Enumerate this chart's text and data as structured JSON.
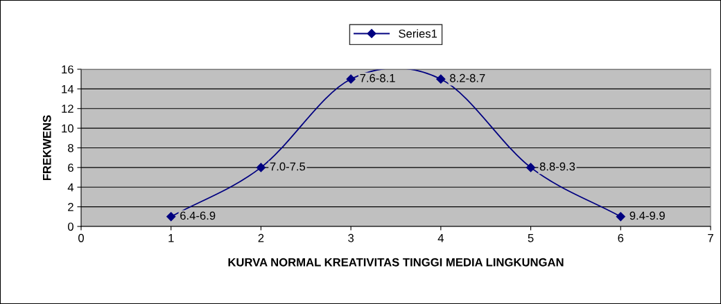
{
  "chart_data": {
    "type": "line",
    "xlabel": "KURVA NORMAL KREATIVITAS TINGGI MEDIA LINGKUNGAN",
    "ylabel": "FREKWENS",
    "x": [
      1,
      2,
      3,
      4,
      5,
      6
    ],
    "series": [
      {
        "name": "Series1",
        "color": "#000080",
        "values": [
          1,
          6,
          15,
          15,
          6,
          1
        ]
      }
    ],
    "xlim": [
      0,
      7
    ],
    "xticks": [
      0,
      1,
      2,
      3,
      4,
      5,
      6,
      7
    ],
    "ylim": [
      0,
      16
    ],
    "yticks": [
      0,
      2,
      4,
      6,
      8,
      10,
      12,
      14,
      16
    ],
    "grid": "y",
    "legend": "top",
    "marker": "diamond",
    "line_style": "solid",
    "annotations": [
      {
        "text": "6.4-6.9",
        "x": 1,
        "y": 1
      },
      {
        "text": "7.0-7.5",
        "x": 2,
        "y": 6
      },
      {
        "text": "7.6-8.1",
        "x": 3,
        "y": 15
      },
      {
        "text": "8.2-8.7",
        "x": 4,
        "y": 15
      },
      {
        "text": "8.8-9.3",
        "x": 5,
        "y": 6
      },
      {
        "text": "9.4-9.9",
        "x": 6,
        "y": 1
      }
    ]
  }
}
